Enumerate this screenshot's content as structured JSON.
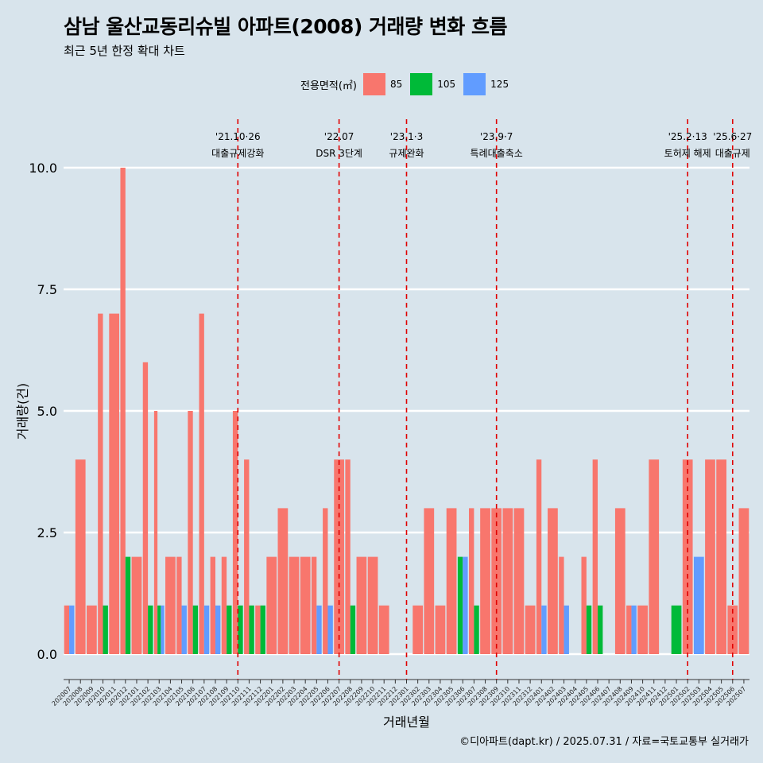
{
  "title": "삼남 울산교동리슈빌 아파트(2008) 거래량 변화 흐름",
  "subtitle": "최근 5년 한정 확대 차트",
  "caption": "©디아파트(dapt.kr) / 2025.07.31 / 자료=국토교통부 실거래가",
  "legend": {
    "title": "전용면적(㎡)",
    "items": [
      {
        "label": "85",
        "color": "#f8766d"
      },
      {
        "label": "105",
        "color": "#00ba38"
      },
      {
        "label": "125",
        "color": "#619cff"
      }
    ]
  },
  "chart_data": {
    "type": "bar",
    "xlabel": "거래년월",
    "ylabel": "거래량(건)",
    "ylim": [
      0,
      10
    ],
    "y_ticks": [
      "0.0",
      "2.5",
      "5.0",
      "7.5",
      "10.0"
    ],
    "grid": true,
    "legend_position": "top",
    "categories": [
      "202007",
      "202008",
      "202009",
      "202010",
      "202011",
      "202012",
      "202101",
      "202102",
      "202103",
      "202104",
      "202105",
      "202106",
      "202107",
      "202108",
      "202109",
      "202110",
      "202111",
      "202112",
      "202201",
      "202202",
      "202203",
      "202204",
      "202205",
      "202206",
      "202207",
      "202208",
      "202209",
      "202210",
      "202211",
      "202212",
      "202301",
      "202302",
      "202303",
      "202304",
      "202305",
      "202306",
      "202307",
      "202308",
      "202309",
      "202310",
      "202311",
      "202312",
      "202401",
      "202402",
      "202403",
      "202404",
      "202405",
      "202406",
      "202407",
      "202408",
      "202409",
      "202410",
      "202411",
      "202412",
      "202501",
      "202502",
      "202503",
      "202504",
      "202505",
      "202506",
      "202507"
    ],
    "series": [
      {
        "name": "85",
        "color": "#f8766d",
        "values": [
          1,
          4,
          1,
          7,
          7,
          10,
          2,
          6,
          5,
          2,
          2,
          5,
          7,
          2,
          2,
          5,
          4,
          1,
          2,
          3,
          2,
          2,
          2,
          3,
          4,
          4,
          2,
          2,
          1,
          0,
          0,
          1,
          3,
          1,
          3,
          0,
          3,
          3,
          3,
          3,
          3,
          1,
          4,
          3,
          2,
          0,
          2,
          4,
          0,
          3,
          1,
          1,
          4,
          0,
          0,
          4,
          0,
          4,
          4,
          1,
          3
        ]
      },
      {
        "name": "105",
        "color": "#00ba38",
        "values": [
          0,
          0,
          0,
          1,
          0,
          2,
          0,
          1,
          1,
          0,
          0,
          1,
          0,
          0,
          1,
          1,
          1,
          1,
          0,
          0,
          0,
          0,
          0,
          0,
          0,
          1,
          0,
          0,
          0,
          0,
          0,
          0,
          0,
          0,
          0,
          2,
          1,
          0,
          0,
          0,
          0,
          0,
          0,
          0,
          0,
          0,
          1,
          1,
          0,
          0,
          0,
          0,
          0,
          0,
          1,
          0,
          0,
          0,
          0,
          0,
          0
        ]
      },
      {
        "name": "125",
        "color": "#619cff",
        "values": [
          1,
          0,
          0,
          0,
          0,
          0,
          0,
          0,
          1,
          0,
          1,
          0,
          1,
          1,
          0,
          0,
          0,
          0,
          0,
          0,
          0,
          0,
          1,
          1,
          0,
          0,
          0,
          0,
          0,
          0,
          0,
          0,
          0,
          0,
          0,
          2,
          0,
          0,
          0,
          0,
          0,
          0,
          1,
          0,
          1,
          0,
          0,
          0,
          0,
          0,
          1,
          0,
          0,
          0,
          0,
          0,
          2,
          0,
          0,
          0,
          0
        ]
      }
    ],
    "annotations": [
      {
        "category": "202110",
        "date": "'21.10·26",
        "text": "대출규제강화"
      },
      {
        "category": "202207",
        "date": "'22.07",
        "text": "DSR 3단계"
      },
      {
        "category": "202301",
        "date": "'23.1·3",
        "text": "규제완화"
      },
      {
        "category": "202309",
        "date": "'23.9·7",
        "text": "특례대출축소"
      },
      {
        "category": "202502",
        "date": "'25.2·13",
        "text": "토허제 해제"
      },
      {
        "category": "202506",
        "date": "'25.6·27",
        "text": "대출규제"
      }
    ]
  }
}
